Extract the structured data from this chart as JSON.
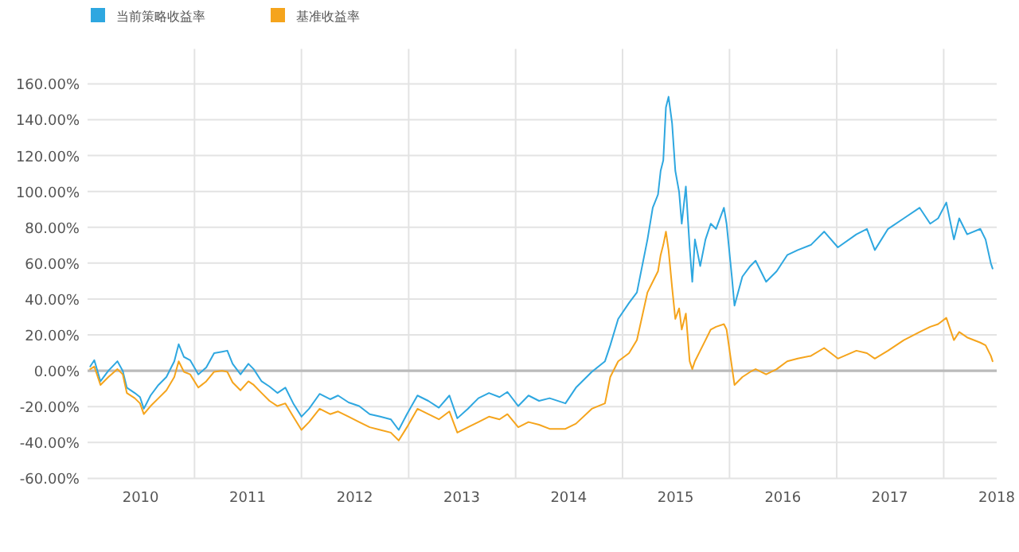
{
  "chart_data": {
    "type": "line",
    "x": [
      "2010-01-10",
      "2010-01-24",
      "2010-02-14",
      "2010-03-13",
      "2010-04-13",
      "2010-05-01",
      "2010-05-15",
      "2010-06-11",
      "2010-06-29",
      "2010-07-12",
      "2010-08-04",
      "2010-08-31",
      "2010-09-27",
      "2010-10-24",
      "2010-11-08",
      "2010-11-26",
      "2010-12-17",
      "2011-01-14",
      "2011-02-10",
      "2011-03-09",
      "2011-04-05",
      "2011-04-23",
      "2011-05-11",
      "2011-06-07",
      "2011-07-04",
      "2011-07-22",
      "2011-08-18",
      "2011-09-14",
      "2011-10-11",
      "2011-11-07",
      "2011-12-04",
      "2012-01-01",
      "2012-01-27",
      "2012-03-03",
      "2012-04-08",
      "2012-05-05",
      "2012-06-10",
      "2012-07-16",
      "2012-08-21",
      "2012-09-26",
      "2012-11-01",
      "2012-11-28",
      "2012-12-26",
      "2013-01-31",
      "2013-03-09",
      "2013-04-14",
      "2013-05-20",
      "2013-06-16",
      "2013-07-22",
      "2013-08-27",
      "2013-10-02",
      "2013-11-07",
      "2013-12-04",
      "2014-01-10",
      "2014-02-14",
      "2014-03-22",
      "2014-04-27",
      "2014-06-20",
      "2014-07-26",
      "2014-09-18",
      "2014-11-02",
      "2014-11-20",
      "2014-12-17",
      "2015-01-23",
      "2015-02-19",
      "2015-03-27",
      "2015-04-14",
      "2015-05-02",
      "2015-05-11",
      "2015-05-20",
      "2015-05-29",
      "2015-06-07",
      "2015-06-19",
      "2015-06-30",
      "2015-07-13",
      "2015-07-22",
      "2015-08-05",
      "2015-08-18",
      "2015-08-27",
      "2015-09-05",
      "2015-09-23",
      "2015-10-11",
      "2015-10-29",
      "2015-11-16",
      "2015-12-13",
      "2015-12-22",
      "2016-01-09",
      "2016-01-18",
      "2016-02-14",
      "2016-03-12",
      "2016-03-30",
      "2016-05-05",
      "2016-06-10",
      "2016-07-16",
      "2016-08-21",
      "2016-10-05",
      "2016-11-19",
      "2017-01-05",
      "2017-03-09",
      "2017-04-14",
      "2017-05-11",
      "2017-06-25",
      "2017-08-18",
      "2017-10-11",
      "2017-11-16",
      "2017-12-13",
      "2018-01-10",
      "2018-02-05",
      "2018-02-23",
      "2018-03-22",
      "2018-05-06",
      "2018-05-24",
      "2018-06-11",
      "2018-06-17"
    ],
    "series": [
      {
        "name": "当前策略收益率",
        "color": "#2ea7e0",
        "values": [
          2.4,
          5.9,
          -5.9,
          0.0,
          5.3,
          0.0,
          -9.4,
          -12.4,
          -14.7,
          -21.2,
          -13.8,
          -7.9,
          -3.5,
          5.3,
          14.8,
          7.7,
          5.9,
          -2.0,
          1.8,
          9.8,
          10.6,
          11.2,
          3.9,
          -2.0,
          3.9,
          0.9,
          -5.9,
          -8.8,
          -12.4,
          -9.4,
          -18.2,
          -25.6,
          -21.2,
          -12.9,
          -15.9,
          -13.8,
          -17.7,
          -19.7,
          -24.2,
          -25.6,
          -27.1,
          -33.0,
          -24.2,
          -13.8,
          -16.8,
          -20.6,
          -13.8,
          -26.5,
          -21.2,
          -15.3,
          -12.4,
          -14.7,
          -11.8,
          -19.7,
          -13.8,
          -16.8,
          -15.3,
          -18.2,
          -9.4,
          -0.6,
          5.3,
          14.2,
          28.9,
          37.8,
          43.7,
          73.2,
          90.9,
          98.3,
          111.5,
          117.4,
          146.9,
          152.8,
          138.1,
          111.5,
          99.7,
          82.0,
          102.7,
          68.8,
          49.6,
          73.2,
          58.4,
          73.2,
          82.0,
          79.1,
          90.9,
          82.0,
          52.5,
          36.3,
          52.5,
          58.4,
          61.4,
          49.6,
          55.5,
          64.5,
          67.3,
          70.2,
          77.6,
          68.8,
          76.1,
          79.1,
          67.3,
          79.1,
          85.0,
          90.9,
          82.0,
          85.0,
          93.8,
          73.2,
          85.0,
          76.1,
          79.1,
          73.2,
          59.9,
          57.0
        ]
      },
      {
        "name": "基准收益率",
        "color": "#f5a41c",
        "values": [
          0.9,
          2.4,
          -7.9,
          -3.5,
          0.9,
          -2.0,
          -12.4,
          -15.3,
          -18.2,
          -24.2,
          -19.7,
          -15.3,
          -10.9,
          -3.5,
          5.3,
          -0.6,
          -2.0,
          -9.4,
          -5.9,
          -0.6,
          0.0,
          -0.6,
          -6.5,
          -10.9,
          -5.9,
          -7.9,
          -12.4,
          -16.8,
          -19.7,
          -18.2,
          -25.6,
          -33.0,
          -28.6,
          -21.2,
          -24.2,
          -22.7,
          -25.6,
          -28.6,
          -31.5,
          -33.0,
          -34.5,
          -38.9,
          -31.5,
          -21.2,
          -24.2,
          -27.1,
          -22.7,
          -34.5,
          -31.5,
          -28.6,
          -25.6,
          -27.1,
          -24.2,
          -31.5,
          -28.6,
          -30.1,
          -32.4,
          -32.4,
          -29.5,
          -21.2,
          -18.2,
          -3.5,
          5.3,
          9.8,
          17.1,
          43.7,
          49.6,
          55.5,
          64.5,
          70.2,
          77.6,
          67.3,
          46.6,
          28.9,
          34.8,
          23.0,
          31.9,
          5.3,
          0.9,
          5.3,
          11.2,
          17.1,
          23.0,
          24.5,
          26.0,
          23.0,
          2.4,
          -7.9,
          -3.5,
          -0.6,
          0.9,
          -2.0,
          0.9,
          5.3,
          6.8,
          8.3,
          12.7,
          6.8,
          11.2,
          9.8,
          6.8,
          11.2,
          17.1,
          21.6,
          24.5,
          26.0,
          29.5,
          17.1,
          21.6,
          18.6,
          15.7,
          14.2,
          8.3,
          5.3
        ]
      }
    ],
    "xlim": [
      "2010-01-01",
      "2018-07-01"
    ],
    "xticks": [
      {
        "value": "2010-07-01",
        "label": "2010"
      },
      {
        "value": "2011-01-01",
        "label": null
      },
      {
        "value": "2011-07-01",
        "label": "2011"
      },
      {
        "value": "2012-01-01",
        "label": null
      },
      {
        "value": "2012-07-01",
        "label": "2012"
      },
      {
        "value": "2013-01-01",
        "label": null
      },
      {
        "value": "2013-07-01",
        "label": "2013"
      },
      {
        "value": "2014-01-01",
        "label": null
      },
      {
        "value": "2014-07-01",
        "label": "2014"
      },
      {
        "value": "2015-01-01",
        "label": null
      },
      {
        "value": "2015-07-01",
        "label": "2015"
      },
      {
        "value": "2016-01-01",
        "label": null
      },
      {
        "value": "2016-07-01",
        "label": "2016"
      },
      {
        "value": "2017-01-01",
        "label": null
      },
      {
        "value": "2017-07-01",
        "label": "2017"
      },
      {
        "value": "2018-01-01",
        "label": null
      },
      {
        "value": "2018-07-01",
        "label": "2018"
      }
    ],
    "ylim": [
      -60,
      160
    ],
    "yticks": [
      {
        "value": -60,
        "label": "-60.00%"
      },
      {
        "value": -40,
        "label": "-40.00%"
      },
      {
        "value": -20,
        "label": "-20.00%"
      },
      {
        "value": 0,
        "label": "0.00%"
      },
      {
        "value": 20,
        "label": "20.00%"
      },
      {
        "value": 40,
        "label": "40.00%"
      },
      {
        "value": 60,
        "label": "60.00%"
      },
      {
        "value": 80,
        "label": "80.00%"
      },
      {
        "value": 100,
        "label": "100.00%"
      },
      {
        "value": 120,
        "label": "120.00%"
      },
      {
        "value": 140,
        "label": "140.00%"
      },
      {
        "value": 160,
        "label": "160.00%"
      }
    ],
    "grid": true,
    "ref_lines": [
      {
        "axis": "y",
        "value": 0,
        "color": "#bbbbbb"
      }
    ],
    "legend": "top left"
  }
}
